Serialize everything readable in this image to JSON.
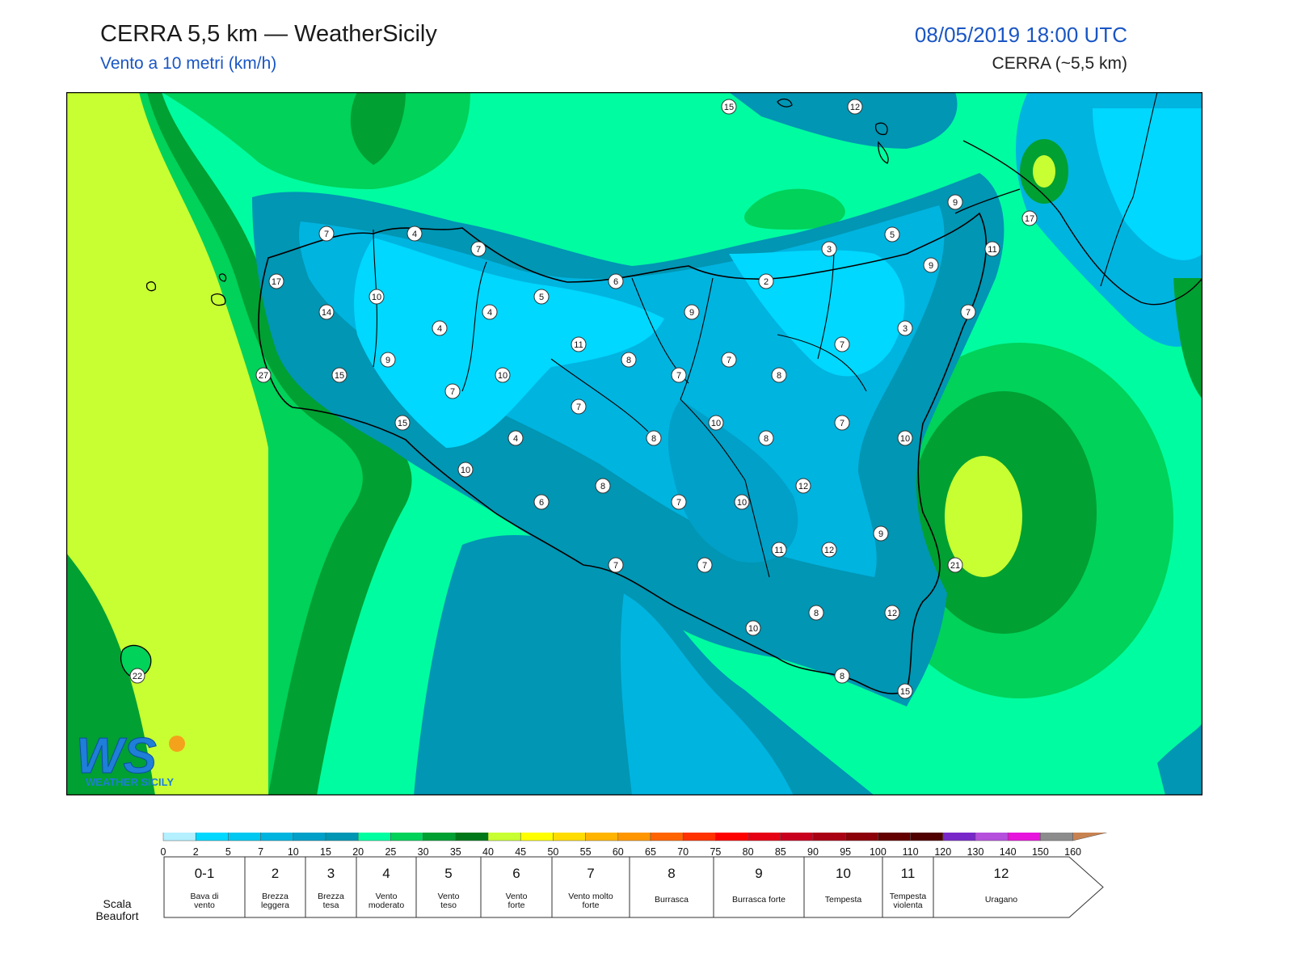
{
  "header": {
    "title": "CERRA 5,5 km — WeatherSicily",
    "subtitle": "Vento a 10 metri (km/h)",
    "datetime": "08/05/2019 18:00 UTC",
    "model": "CERRA (~5,5 km)"
  },
  "logo": {
    "letters": "WS",
    "text": "WEATHER SICILY"
  },
  "map": {
    "variable": "10 m wind speed (km/h)",
    "station_values": [
      {
        "id": "n1",
        "value": 15
      },
      {
        "id": "n2",
        "value": 12
      },
      {
        "id": "n3",
        "value": 9
      },
      {
        "id": "n4",
        "value": 17
      },
      {
        "id": "n5",
        "value": 5
      },
      {
        "id": "n6",
        "value": 3
      },
      {
        "id": "n7",
        "value": 11
      },
      {
        "id": "n8",
        "value": 9
      },
      {
        "id": "n9",
        "value": 2
      },
      {
        "id": "n10",
        "value": 6
      },
      {
        "id": "n11",
        "value": 7
      },
      {
        "id": "n12",
        "value": 4
      },
      {
        "id": "n13",
        "value": 7
      },
      {
        "id": "n14",
        "value": 17
      },
      {
        "id": "n15",
        "value": 10
      },
      {
        "id": "n16",
        "value": 14
      },
      {
        "id": "n17",
        "value": 5
      },
      {
        "id": "n18",
        "value": 4
      },
      {
        "id": "n19",
        "value": 4
      },
      {
        "id": "n20",
        "value": 9
      },
      {
        "id": "n21",
        "value": 7
      },
      {
        "id": "n22",
        "value": 3
      },
      {
        "id": "n23",
        "value": 9
      },
      {
        "id": "n24",
        "value": 11
      },
      {
        "id": "n25",
        "value": 8
      },
      {
        "id": "n26",
        "value": 7
      },
      {
        "id": "n27",
        "value": 7
      },
      {
        "id": "n28",
        "value": 8
      },
      {
        "id": "n29",
        "value": 27
      },
      {
        "id": "n30",
        "value": 15
      },
      {
        "id": "n31",
        "value": 10
      },
      {
        "id": "n32",
        "value": 7
      },
      {
        "id": "n33",
        "value": 7
      },
      {
        "id": "n34",
        "value": 7
      },
      {
        "id": "n35",
        "value": 15
      },
      {
        "id": "n36",
        "value": 10
      },
      {
        "id": "n37",
        "value": 7
      },
      {
        "id": "n38",
        "value": 4
      },
      {
        "id": "n39",
        "value": 8
      },
      {
        "id": "n40",
        "value": 8
      },
      {
        "id": "n41",
        "value": 10
      },
      {
        "id": "n42",
        "value": 10
      },
      {
        "id": "n43",
        "value": 8
      },
      {
        "id": "n44",
        "value": 6
      },
      {
        "id": "n45",
        "value": 7
      },
      {
        "id": "n46",
        "value": 10
      },
      {
        "id": "n47",
        "value": 12
      },
      {
        "id": "n48",
        "value": 9
      },
      {
        "id": "n49",
        "value": 11
      },
      {
        "id": "n50",
        "value": 12
      },
      {
        "id": "n51",
        "value": 21
      },
      {
        "id": "n52",
        "value": 7
      },
      {
        "id": "n53",
        "value": 7
      },
      {
        "id": "n54",
        "value": 8
      },
      {
        "id": "n55",
        "value": 12
      },
      {
        "id": "n56",
        "value": 10
      },
      {
        "id": "n57",
        "value": 8
      },
      {
        "id": "n58",
        "value": 15
      },
      {
        "id": "n59",
        "value": 22
      }
    ]
  },
  "colorbar": {
    "ticks": [
      "0",
      "2",
      "5",
      "7",
      "10",
      "15",
      "20",
      "25",
      "30",
      "35",
      "40",
      "45",
      "50",
      "55",
      "60",
      "65",
      "70",
      "75",
      "80",
      "85",
      "90",
      "95",
      "100",
      "110",
      "120",
      "130",
      "140",
      "150",
      "160"
    ],
    "colors": [
      "#b4f0ff",
      "#00d8ff",
      "#00c8f0",
      "#00b4e0",
      "#00a0c8",
      "#0096b4",
      "#00ffa0",
      "#00d25a",
      "#00a032",
      "#007819",
      "#c8ff32",
      "#ffff00",
      "#ffdc00",
      "#ffb400",
      "#ff9600",
      "#ff6400",
      "#ff3200",
      "#ff0000",
      "#e60014",
      "#c8001e",
      "#aa0014",
      "#8c000a",
      "#640000",
      "#500000",
      "#7828c8",
      "#b450dc",
      "#e614dc",
      "#8c8c8c",
      "#5a5a5a",
      "#000000",
      "#8c4628",
      "#c88250"
    ]
  },
  "beaufort": {
    "caption": "Scala Beaufort",
    "cells": [
      {
        "num": "0-1",
        "label": "Bava di vento"
      },
      {
        "num": "2",
        "label": "Brezza leggera"
      },
      {
        "num": "3",
        "label": "Brezza tesa"
      },
      {
        "num": "4",
        "label": "Vento moderato"
      },
      {
        "num": "5",
        "label": "Vento teso"
      },
      {
        "num": "6",
        "label": "Vento forte"
      },
      {
        "num": "7",
        "label": "Vento molto forte"
      },
      {
        "num": "8",
        "label": "Burrasca"
      },
      {
        "num": "9",
        "label": "Burrasca forte"
      },
      {
        "num": "10",
        "label": "Tempesta"
      },
      {
        "num": "11",
        "label": "Tempesta violenta"
      },
      {
        "num": "12",
        "label": "Uragano"
      }
    ]
  }
}
